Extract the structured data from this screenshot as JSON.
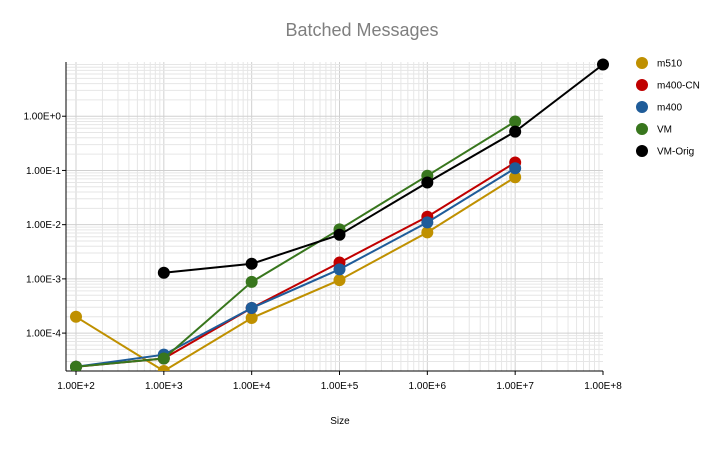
{
  "chart_data": {
    "type": "line",
    "title": "Batched Messages",
    "xlabel": "Size",
    "ylabel": "",
    "x_scale": "log",
    "y_scale": "log",
    "xlim": [
      100,
      100000000
    ],
    "ylim": [
      2e-05,
      10
    ],
    "x_ticks": [
      100,
      1000,
      10000,
      100000,
      1000000,
      10000000,
      100000000
    ],
    "x_tick_labels": [
      "1.00E+2",
      "1.00E+3",
      "1.00E+4",
      "1.00E+5",
      "1.00E+6",
      "1.00E+7",
      "1.00E+8"
    ],
    "y_ticks": [
      0.0001,
      0.001,
      0.01,
      0.1,
      1
    ],
    "y_tick_labels": [
      "1.00E-4",
      "1.00E-3",
      "1.00E-2",
      "1.00E-1",
      "1.00E+0"
    ],
    "grid": true,
    "legend_position": "right",
    "series": [
      {
        "name": "m510",
        "color": "#BF9000",
        "x": [
          100,
          1000,
          10000,
          100000,
          1000000,
          10000000
        ],
        "y": [
          0.0002,
          2e-05,
          0.00019,
          0.00095,
          0.0072,
          0.075
        ]
      },
      {
        "name": "m400-CN",
        "color": "#C00000",
        "x": [
          100,
          1000,
          10000,
          100000,
          1000000,
          10000000
        ],
        "y": [
          2.4e-05,
          3.4e-05,
          0.00029,
          0.002,
          0.014,
          0.14
        ]
      },
      {
        "name": "m400",
        "color": "#1F5C99",
        "x": [
          100,
          1000,
          10000,
          100000,
          1000000,
          10000000
        ],
        "y": [
          2.4e-05,
          4e-05,
          0.00029,
          0.0015,
          0.011,
          0.11
        ]
      },
      {
        "name": "VM",
        "color": "#38761D",
        "x": [
          100,
          1000,
          10000,
          100000,
          1000000,
          10000000
        ],
        "y": [
          2.4e-05,
          3.4e-05,
          0.00088,
          0.0082,
          0.08,
          0.8
        ]
      },
      {
        "name": "VM-Orig",
        "color": "#000000",
        "x": [
          1000,
          10000,
          100000,
          1000000,
          10000000,
          100000000
        ],
        "y": [
          0.0013,
          0.0019,
          0.0065,
          0.06,
          0.52,
          9.0
        ]
      }
    ]
  }
}
